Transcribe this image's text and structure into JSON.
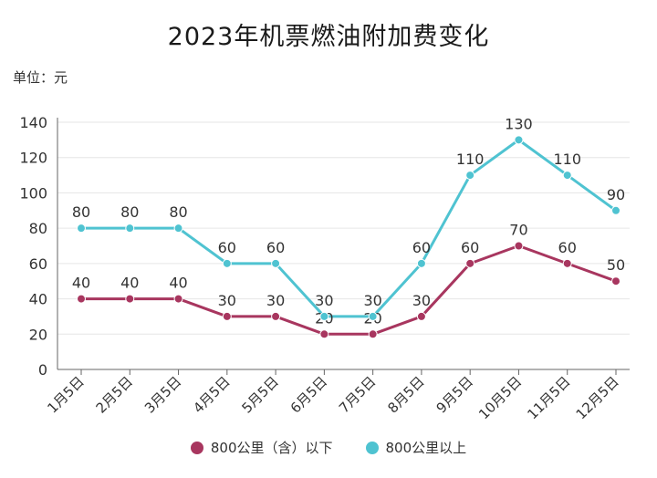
{
  "chart_data": {
    "type": "line",
    "title": "2023年机票燃油附加费变化",
    "unit_label": "单位：元",
    "categories": [
      "1月5日",
      "2月5日",
      "3月5日",
      "4月5日",
      "5月5日",
      "6月5日",
      "7月5日",
      "8月5日",
      "9月5日",
      "10月5日",
      "11月5日",
      "12月5日"
    ],
    "ylim": [
      0,
      140
    ],
    "yticks": [
      0,
      20,
      40,
      60,
      80,
      100,
      120,
      140
    ],
    "grid": true,
    "legend_position": "bottom",
    "series": [
      {
        "name": "800公里（含）以下",
        "color": "#a8365f",
        "values": [
          40,
          40,
          40,
          30,
          30,
          20,
          20,
          30,
          60,
          70,
          60,
          50
        ]
      },
      {
        "name": "800公里以上",
        "color": "#4fc3d1",
        "values": [
          80,
          80,
          80,
          60,
          60,
          30,
          30,
          60,
          110,
          130,
          110,
          90
        ]
      }
    ]
  }
}
